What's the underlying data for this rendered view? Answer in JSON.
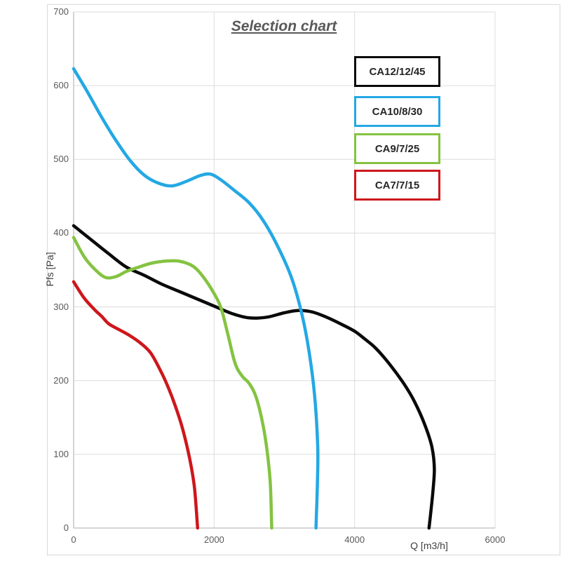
{
  "title": "Selection chart",
  "axes": {
    "x_title": "Q [m3/h]",
    "y_title": "Pfs [Pa]"
  },
  "colors": {
    "series_black": "#0a0a0a",
    "series_blue": "#24a8e4",
    "series_green": "#84c341",
    "series_red": "#cd171c",
    "gridline": "#dcdcdc",
    "axis_line": "#bdbdbd",
    "tick_text": "#595959",
    "title_text": "#595959",
    "frame_border": "#d9d9d9"
  },
  "legend": [
    {
      "label": "CA12/12/45",
      "color": "#0a0a0a"
    },
    {
      "label": "CA10/8/30",
      "color": "#24a8e4"
    },
    {
      "label": "CA9/7/25",
      "color": "#84c341"
    },
    {
      "label": "CA7/7/15",
      "color": "#cd171c"
    }
  ],
  "chart_data": {
    "type": "line",
    "title": "Selection chart",
    "xlabel": "Q [m3/h]",
    "ylabel": "Pfs [Pa]",
    "xlim": [
      0,
      6000
    ],
    "ylim": [
      0,
      700
    ],
    "x_ticks": [
      0,
      2000,
      4000,
      6000
    ],
    "y_ticks": [
      0,
      100,
      200,
      300,
      400,
      500,
      600,
      700
    ],
    "grid": {
      "horizontal_step": 100,
      "vertical_step": 2000,
      "grid_on": true
    },
    "legend_position": "top-right",
    "series": [
      {
        "name": "CA12/12/45",
        "color": "#0a0a0a",
        "points": [
          [
            0,
            410
          ],
          [
            250,
            391
          ],
          [
            500,
            372
          ],
          [
            750,
            354
          ],
          [
            1000,
            343
          ],
          [
            1250,
            331
          ],
          [
            1500,
            321
          ],
          [
            1750,
            311
          ],
          [
            2000,
            301
          ],
          [
            2250,
            291
          ],
          [
            2500,
            285
          ],
          [
            2750,
            286
          ],
          [
            3000,
            292
          ],
          [
            3200,
            295
          ],
          [
            3400,
            293
          ],
          [
            3600,
            286
          ],
          [
            3800,
            277
          ],
          [
            4000,
            267
          ],
          [
            4150,
            256
          ],
          [
            4300,
            244
          ],
          [
            4500,
            222
          ],
          [
            4700,
            196
          ],
          [
            4850,
            172
          ],
          [
            5000,
            140
          ],
          [
            5100,
            110
          ],
          [
            5135,
            80
          ],
          [
            5110,
            45
          ],
          [
            5060,
            0
          ]
        ]
      },
      {
        "name": "CA10/8/30",
        "color": "#24a8e4",
        "points": [
          [
            0,
            623
          ],
          [
            200,
            591
          ],
          [
            400,
            557
          ],
          [
            600,
            526
          ],
          [
            800,
            499
          ],
          [
            1000,
            479
          ],
          [
            1200,
            468
          ],
          [
            1400,
            464
          ],
          [
            1600,
            470
          ],
          [
            1800,
            478
          ],
          [
            1950,
            480
          ],
          [
            2100,
            472
          ],
          [
            2300,
            457
          ],
          [
            2500,
            441
          ],
          [
            2700,
            417
          ],
          [
            2900,
            383
          ],
          [
            3100,
            340
          ],
          [
            3250,
            290
          ],
          [
            3350,
            240
          ],
          [
            3430,
            180
          ],
          [
            3475,
            110
          ],
          [
            3470,
            60
          ],
          [
            3450,
            0
          ]
        ]
      },
      {
        "name": "CA9/7/25",
        "color": "#84c341",
        "points": [
          [
            0,
            394
          ],
          [
            150,
            368
          ],
          [
            300,
            351
          ],
          [
            450,
            340
          ],
          [
            600,
            341
          ],
          [
            750,
            348
          ],
          [
            900,
            353
          ],
          [
            1100,
            359
          ],
          [
            1300,
            362
          ],
          [
            1500,
            362
          ],
          [
            1700,
            355
          ],
          [
            1850,
            340
          ],
          [
            2000,
            318
          ],
          [
            2100,
            298
          ],
          [
            2200,
            261
          ],
          [
            2300,
            223
          ],
          [
            2400,
            206
          ],
          [
            2500,
            196
          ],
          [
            2600,
            177
          ],
          [
            2700,
            138
          ],
          [
            2760,
            100
          ],
          [
            2800,
            60
          ],
          [
            2820,
            0
          ]
        ]
      },
      {
        "name": "CA7/7/15",
        "color": "#cd171c",
        "points": [
          [
            0,
            334
          ],
          [
            150,
            312
          ],
          [
            300,
            296
          ],
          [
            400,
            287
          ],
          [
            500,
            277
          ],
          [
            650,
            269
          ],
          [
            800,
            261
          ],
          [
            950,
            251
          ],
          [
            1100,
            237
          ],
          [
            1250,
            211
          ],
          [
            1350,
            190
          ],
          [
            1450,
            165
          ],
          [
            1550,
            135
          ],
          [
            1650,
            95
          ],
          [
            1720,
            55
          ],
          [
            1765,
            0
          ]
        ]
      }
    ]
  }
}
